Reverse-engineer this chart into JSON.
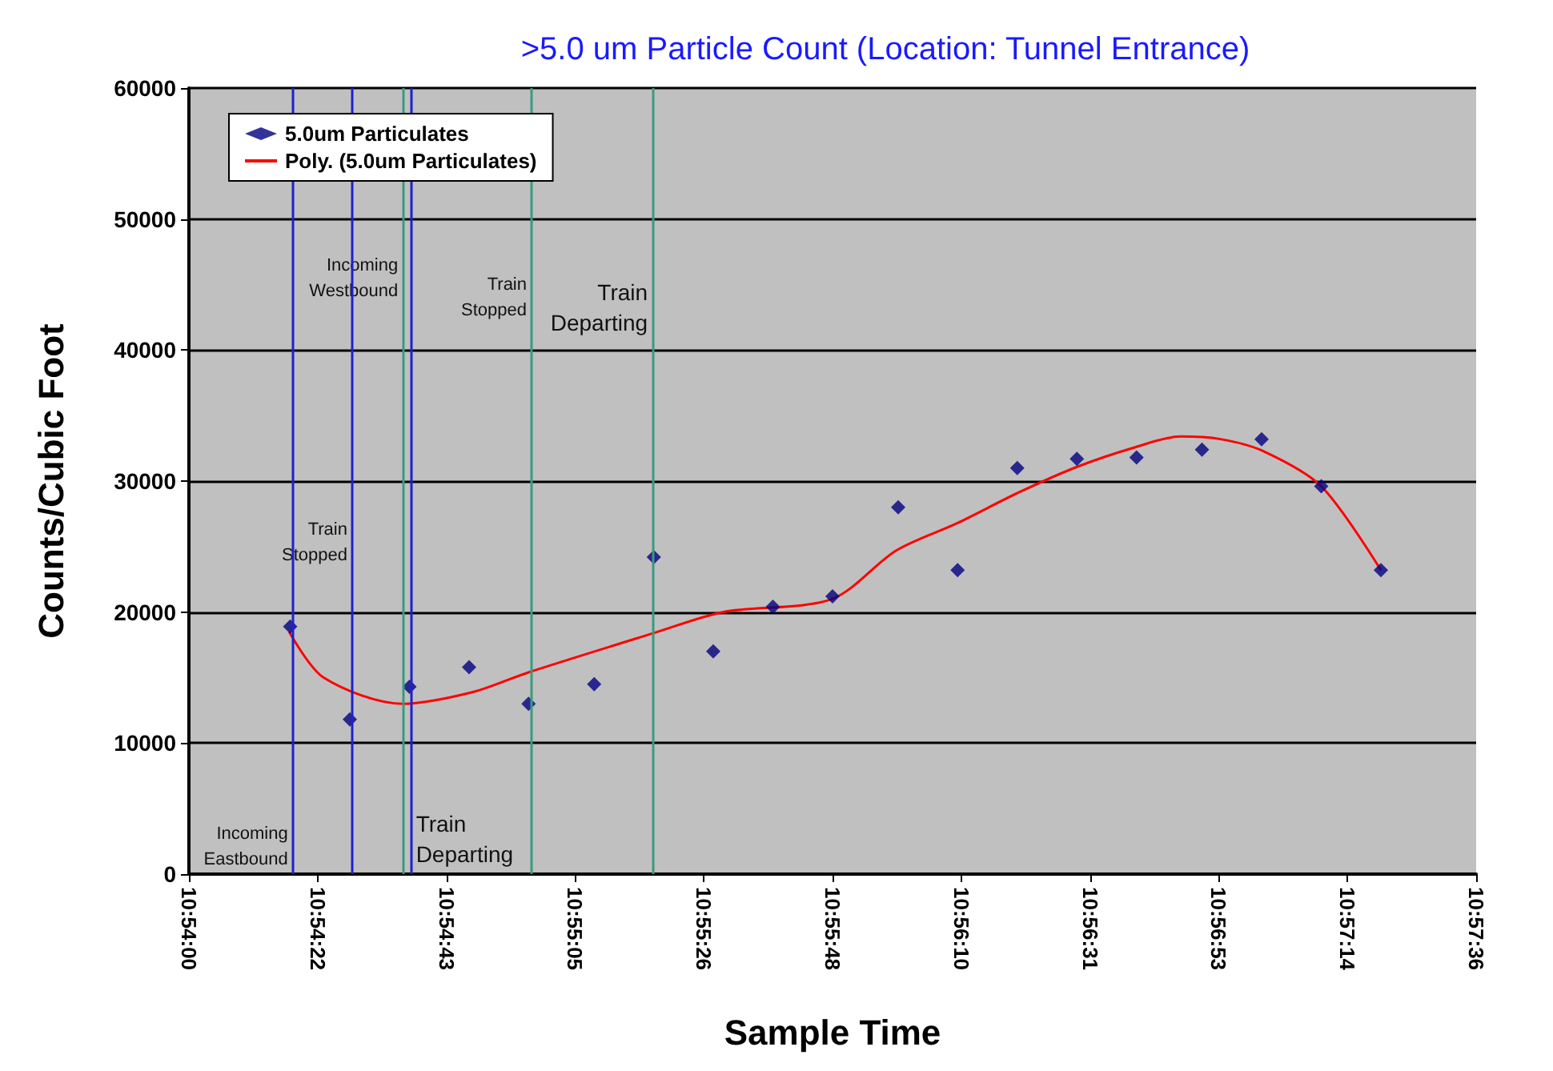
{
  "chart_data": {
    "type": "scatter",
    "title": ">5.0 um Particle Count (Location: Tunnel Entrance)",
    "xlabel": "Sample Time",
    "ylabel": "Counts/Cubic Foot",
    "series": [
      {
        "name": "5.0um Particulates",
        "color": "#000080",
        "x": [
          10.90472,
          10.9075,
          10.91028,
          10.91306,
          10.91583,
          10.91889,
          10.92167,
          10.92444,
          10.92722,
          10.93,
          10.93306,
          10.93583,
          10.93861,
          10.94139,
          10.94417,
          10.94722,
          10.95,
          10.95278,
          10.95556
        ],
        "values": [
          18900,
          11800,
          14300,
          15800,
          13000,
          14500,
          24200,
          17000,
          20400,
          21200,
          28000,
          23200,
          31000,
          31700,
          31800,
          32400,
          33200,
          29600,
          23200
        ]
      },
      {
        "name": "Poly. (5.0um Particulates)",
        "type": "line",
        "marker": "none",
        "color": "#ff0000",
        "x": [
          10.90467,
          10.90628,
          10.90997,
          10.91325,
          10.91583,
          10.92167,
          10.92489,
          10.92997,
          10.93297,
          10.93583,
          10.93864,
          10.94142,
          10.94414,
          10.94622,
          10.94808,
          10.95006,
          10.95278,
          10.95556
        ],
        "values": [
          18500,
          15000,
          13000,
          13900,
          15400,
          18400,
          20000,
          21000,
          24700,
          26800,
          29100,
          31100,
          32600,
          33400,
          33200,
          32300,
          29600,
          23200
        ]
      }
    ],
    "xlim": [
      10.9,
      10.96
    ],
    "xticks": [
      {
        "value": 10.9,
        "label": "10:54:00"
      },
      {
        "value": 10.906,
        "label": "10:54:22"
      },
      {
        "value": 10.912,
        "label": "10:54:43"
      },
      {
        "value": 10.918,
        "label": "10:55:05"
      },
      {
        "value": 10.924,
        "label": "10:55:26"
      },
      {
        "value": 10.93,
        "label": "10:55:48"
      },
      {
        "value": 10.936,
        "label": "10:56:10"
      },
      {
        "value": 10.942,
        "label": "10:56:31"
      },
      {
        "value": 10.948,
        "label": "10:56:53"
      },
      {
        "value": 10.954,
        "label": "10:57:14"
      },
      {
        "value": 10.96,
        "label": "10:57:36"
      }
    ],
    "ylim": [
      0,
      60000
    ],
    "yticks": [
      0,
      10000,
      20000,
      30000,
      40000,
      50000,
      60000
    ],
    "ref_lines": [
      {
        "axis": "x",
        "value": 10.90484,
        "label": "Incoming\nEastbound",
        "color": "#2020d0"
      },
      {
        "axis": "x",
        "value": 10.90761,
        "label": "Train\nStopped",
        "color": "#2020d0"
      },
      {
        "axis": "x",
        "value": 10.90997,
        "label": "Incoming\nWestbound",
        "color": "#3a9a80"
      },
      {
        "axis": "x",
        "value": 10.91036,
        "label": "Train\nDeparting",
        "color": "#2020d0"
      },
      {
        "axis": "x",
        "value": 10.91597,
        "label": "Train\nStopped",
        "color": "#3a9a80"
      },
      {
        "axis": "x",
        "value": 10.92161,
        "label": "Train\nDeparting",
        "color": "#3a9a80"
      }
    ],
    "grid": "y",
    "legend": "top left",
    "marker": "diamond"
  }
}
